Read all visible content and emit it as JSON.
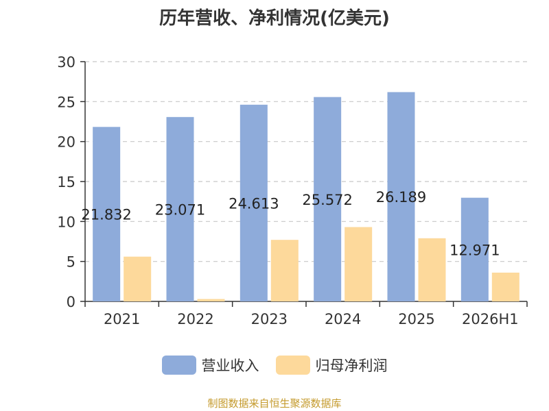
{
  "title": "历年营收、净利情况(亿美元)",
  "source": "制图数据来自恒生聚源数据库",
  "chart_data": {
    "type": "bar",
    "title": "历年营收、净利情况(亿美元)",
    "categories": [
      "2021",
      "2022",
      "2023",
      "2024",
      "2025",
      "2026H1"
    ],
    "ylim": [
      0,
      30
    ],
    "yticks": [
      0,
      5,
      10,
      15,
      20,
      25,
      30
    ],
    "grid": true,
    "legend": "bottom",
    "series": [
      {
        "name": "营业收入",
        "color": "#8eabda",
        "values": [
          21.832,
          23.071,
          24.613,
          25.572,
          26.189,
          12.971
        ],
        "labels": [
          "21.832",
          "23.071",
          "24.613",
          "25.572",
          "26.189",
          "12.971"
        ]
      },
      {
        "name": "归母净利润",
        "color": "#fdd99b",
        "values": [
          5.6,
          0.3,
          7.7,
          9.3,
          7.9,
          3.6
        ]
      }
    ]
  }
}
